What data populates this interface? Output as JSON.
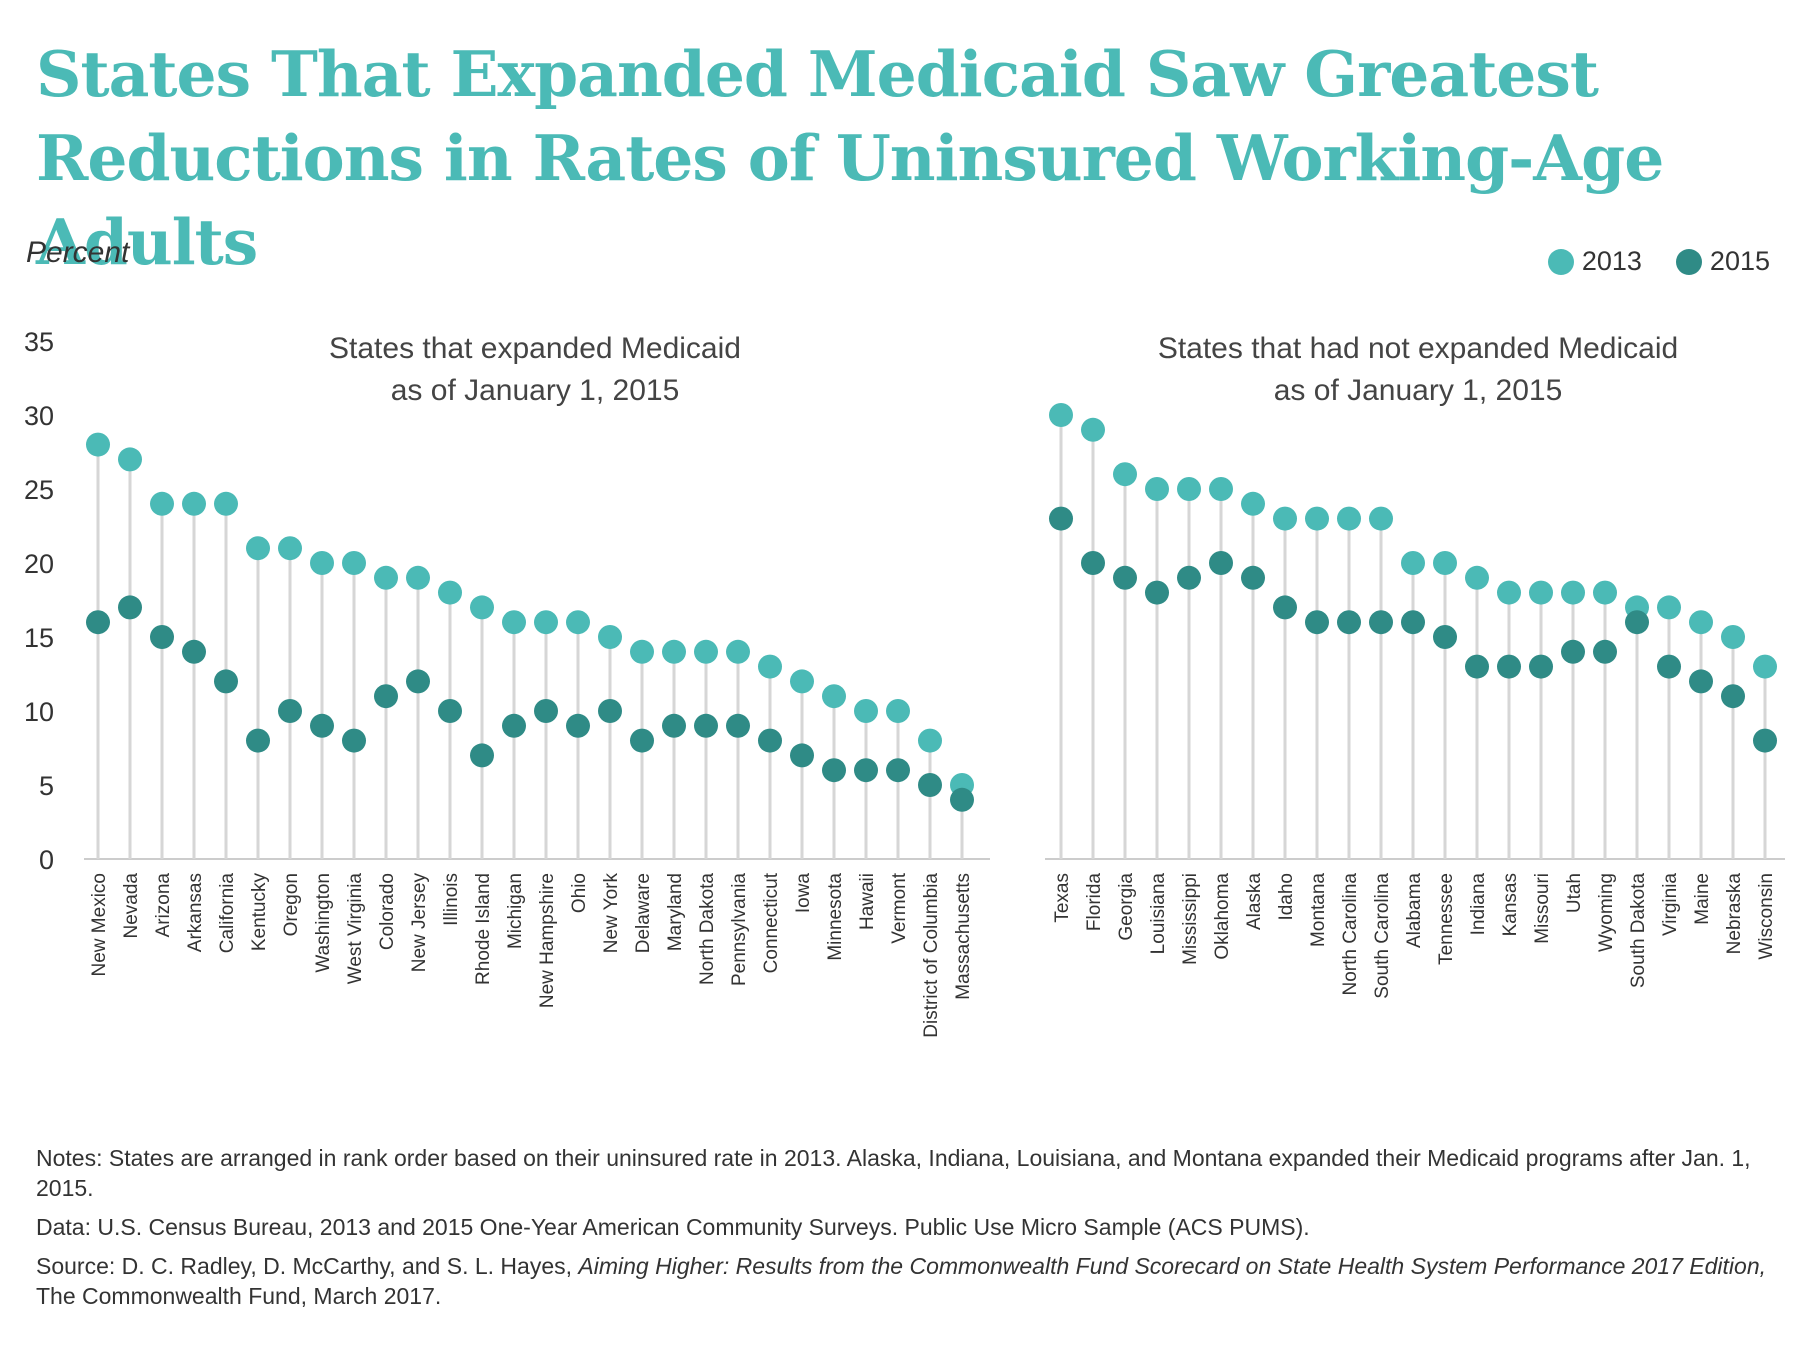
{
  "title_line1": "States That Expanded Medicaid Saw Greatest",
  "title_line2": "Reductions in Rates of Uninsured Working-Age Adults",
  "notes": {
    "note": "Notes: States are arranged in rank order based on their uninsured rate in 2013. Alaska, Indiana, Louisiana, and Montana expanded their Medicaid programs after Jan. 1, 2015.",
    "data": "Data: U.S. Census Bureau, 2013 and 2015 One-Year American Community Surveys. Public Use Micro Sample (ACS PUMS).",
    "source_prefix": "Source: D. C. Radley, D. McCarthy, and S. L. Hayes, ",
    "source_italic": "Aiming Higher: Results from the Commonwealth Fund Scorecard on State Health System Performance 2017 Edition,",
    "source_suffix": " The Commonwealth Fund, March 2017."
  },
  "colors": {
    "c2013": "#4bbab6",
    "c2015": "#2f8b86",
    "stem": "#d6d6d6",
    "title": "#4bbab6"
  },
  "chart_data": {
    "type": "scatter",
    "ylabel": "Percent",
    "ylim": [
      0,
      35
    ],
    "yticks": [
      0,
      5,
      10,
      15,
      20,
      25,
      30,
      35
    ],
    "grid": false,
    "legend": {
      "position": "top-right",
      "entries": [
        "2013",
        "2015"
      ]
    },
    "panels": [
      {
        "title_line1": "States that expanded Medicaid",
        "title_line2": "as of January 1, 2015",
        "categories": [
          "New Mexico",
          "Nevada",
          "Arizona",
          "Arkansas",
          "California",
          "Kentucky",
          "Oregon",
          "Washington",
          "West Virginia",
          "Colorado",
          "New Jersey",
          "Illinois",
          "Rhode Island",
          "Michigan",
          "New Hampshire",
          "Ohio",
          "New York",
          "Delaware",
          "Maryland",
          "North Dakota",
          "Pennsylvania",
          "Connecticut",
          "Iowa",
          "Minnesota",
          "Hawaii",
          "Vermont",
          "District of Columbia",
          "Massachusetts"
        ],
        "series": [
          {
            "name": "2013",
            "values": [
              28,
              27,
              24,
              24,
              24,
              21,
              21,
              20,
              20,
              19,
              19,
              18,
              17,
              16,
              16,
              16,
              15,
              14,
              14,
              14,
              14,
              13,
              12,
              11,
              10,
              10,
              8,
              5
            ]
          },
          {
            "name": "2015",
            "values": [
              16,
              17,
              15,
              14,
              12,
              8,
              10,
              9,
              8,
              11,
              12,
              10,
              7,
              9,
              10,
              9,
              10,
              8,
              9,
              9,
              9,
              8,
              7,
              6,
              6,
              6,
              5,
              4
            ]
          }
        ]
      },
      {
        "title_line1": "States that had not expanded Medicaid",
        "title_line2": "as of January 1, 2015",
        "categories": [
          "Texas",
          "Florida",
          "Georgia",
          "Louisiana",
          "Mississippi",
          "Oklahoma",
          "Alaska",
          "Idaho",
          "Montana",
          "North Carolina",
          "South Carolina",
          "Alabama",
          "Tennessee",
          "Indiana",
          "Kansas",
          "Missouri",
          "Utah",
          "Wyoming",
          "South Dakota",
          "Virginia",
          "Maine",
          "Nebraska",
          "Wisconsin"
        ],
        "series": [
          {
            "name": "2013",
            "values": [
              30,
              29,
              26,
              25,
              25,
              25,
              24,
              23,
              23,
              23,
              23,
              20,
              20,
              19,
              18,
              18,
              18,
              18,
              17,
              17,
              16,
              15,
              13
            ]
          },
          {
            "name": "2015",
            "values": [
              23,
              20,
              19,
              18,
              19,
              20,
              19,
              17,
              16,
              16,
              16,
              16,
              15,
              13,
              13,
              13,
              14,
              14,
              16,
              13,
              12,
              11,
              8
            ]
          }
        ]
      }
    ]
  }
}
